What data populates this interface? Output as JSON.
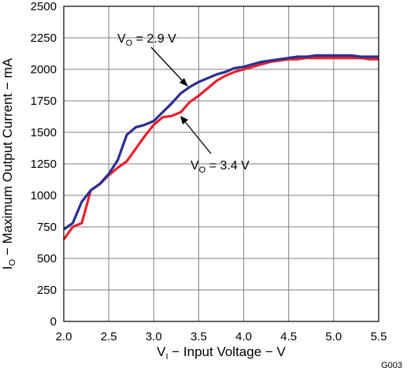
{
  "chart_data": {
    "type": "line",
    "xlabel_main": "V",
    "xlabel_sub": "I",
    "xlabel_rest": " − Input Voltage − V",
    "ylabel_main": "I",
    "ylabel_sub": "O",
    "ylabel_rest": " − Maximum Output Current − mA",
    "xlim": [
      2.0,
      5.5
    ],
    "ylim": [
      0,
      2500
    ],
    "x_ticks": [
      2.0,
      2.5,
      3.0,
      3.5,
      4.0,
      4.5,
      5.0,
      5.5
    ],
    "x_tick_labels": [
      "2.0",
      "2.5",
      "3.0",
      "3.5",
      "4.0",
      "4.5",
      "5.0",
      "5.5"
    ],
    "y_ticks": [
      0,
      250,
      500,
      750,
      1000,
      1250,
      1500,
      1750,
      2000,
      2250,
      2500
    ],
    "y_tick_labels": [
      "0",
      "250",
      "500",
      "750",
      "1000",
      "1250",
      "1500",
      "1750",
      "2000",
      "2250",
      "2500"
    ],
    "grid": true,
    "figure_id": "G003",
    "series": [
      {
        "name": "VO = 2.9 V",
        "label_main": "V",
        "label_sub": "O",
        "label_rest": " = 2.9 V",
        "color": "#2b2f8f",
        "x": [
          2.0,
          2.1,
          2.2,
          2.3,
          2.4,
          2.5,
          2.6,
          2.7,
          2.8,
          2.9,
          3.0,
          3.1,
          3.2,
          3.3,
          3.4,
          3.5,
          3.6,
          3.7,
          3.8,
          3.9,
          4.0,
          4.1,
          4.2,
          4.3,
          4.4,
          4.5,
          4.6,
          4.7,
          4.8,
          4.9,
          5.0,
          5.1,
          5.2,
          5.3,
          5.4,
          5.5
        ],
        "y": [
          730,
          780,
          950,
          1040,
          1090,
          1170,
          1280,
          1480,
          1540,
          1560,
          1590,
          1660,
          1730,
          1810,
          1860,
          1900,
          1930,
          1960,
          1980,
          2010,
          2020,
          2040,
          2060,
          2070,
          2080,
          2090,
          2100,
          2100,
          2110,
          2110,
          2110,
          2110,
          2110,
          2100,
          2100,
          2100
        ]
      },
      {
        "name": "VO = 3.4 V",
        "label_main": "V",
        "label_sub": "O",
        "label_rest": " = 3.4 V",
        "color": "#e8212e",
        "x": [
          2.0,
          2.1,
          2.2,
          2.3,
          2.4,
          2.5,
          2.6,
          2.7,
          2.8,
          2.9,
          3.0,
          3.1,
          3.2,
          3.3,
          3.4,
          3.5,
          3.6,
          3.7,
          3.8,
          3.9,
          4.0,
          4.1,
          4.2,
          4.3,
          4.4,
          4.5,
          4.6,
          4.7,
          4.8,
          4.9,
          5.0,
          5.1,
          5.2,
          5.3,
          5.4,
          5.5
        ],
        "y": [
          650,
          750,
          780,
          1040,
          1090,
          1160,
          1220,
          1270,
          1370,
          1470,
          1560,
          1620,
          1630,
          1660,
          1740,
          1790,
          1850,
          1910,
          1950,
          1980,
          2000,
          2020,
          2040,
          2060,
          2070,
          2080,
          2080,
          2090,
          2090,
          2090,
          2090,
          2090,
          2090,
          2090,
          2080,
          2080
        ]
      }
    ]
  }
}
